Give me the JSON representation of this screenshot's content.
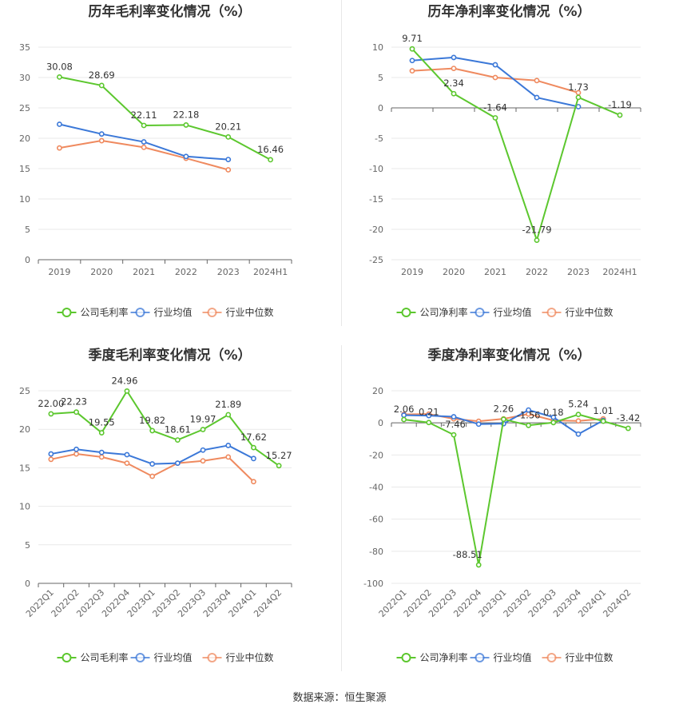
{
  "source": "数据来源：恒生聚源",
  "colors": {
    "company": "#5cc72e",
    "avg": "#3b78d8",
    "median": "#ef8a5f"
  },
  "chart_data": [
    {
      "type": "line",
      "title": "历年毛利率变化情况（%）",
      "categories": [
        "2019",
        "2020",
        "2021",
        "2022",
        "2023",
        "2024H1"
      ],
      "ylim": [
        0,
        35
      ],
      "yticks": [
        0,
        5,
        10,
        15,
        20,
        25,
        30,
        35
      ],
      "grid": true,
      "legend_position": "bottom",
      "series": [
        {
          "name": "公司毛利率",
          "color": "#5cc72e",
          "values": [
            30.08,
            28.69,
            22.11,
            22.18,
            20.21,
            16.46
          ],
          "labels": [
            "30.08",
            "28.69",
            "22.11",
            "22.18",
            "20.21",
            "16.46"
          ]
        },
        {
          "name": "行业均值",
          "color": "#3b78d8",
          "values": [
            22.3,
            20.7,
            19.4,
            17.0,
            16.5,
            null
          ]
        },
        {
          "name": "行业中位数",
          "color": "#ef8a5f",
          "values": [
            18.4,
            19.6,
            18.5,
            16.7,
            14.8,
            null
          ]
        }
      ]
    },
    {
      "type": "line",
      "title": "历年净利率变化情况（%）",
      "categories": [
        "2019",
        "2020",
        "2021",
        "2022",
        "2023",
        "2024H1"
      ],
      "ylim": [
        -25,
        10
      ],
      "yticks": [
        -25,
        -20,
        -15,
        -10,
        -5,
        0,
        5,
        10
      ],
      "grid": true,
      "legend_position": "bottom",
      "series": [
        {
          "name": "公司净利率",
          "color": "#5cc72e",
          "values": [
            9.71,
            2.34,
            -1.64,
            -21.79,
            1.73,
            -1.19
          ],
          "labels": [
            "9.71",
            "2.34",
            "-1.64",
            "-21.79",
            "1.73",
            "-1.19"
          ]
        },
        {
          "name": "行业均值",
          "color": "#3b78d8",
          "values": [
            7.8,
            8.3,
            7.1,
            1.7,
            0.2,
            null
          ]
        },
        {
          "name": "行业中位数",
          "color": "#ef8a5f",
          "values": [
            6.1,
            6.5,
            5.0,
            4.5,
            2.5,
            null
          ]
        }
      ]
    },
    {
      "type": "line",
      "title": "季度毛利率变化情况（%）",
      "categories": [
        "2022Q1",
        "2022Q2",
        "2022Q3",
        "2022Q4",
        "2023Q1",
        "2023Q2",
        "2023Q3",
        "2023Q4",
        "2024Q1",
        "2024Q2"
      ],
      "ylim": [
        0,
        25
      ],
      "yticks": [
        0,
        5,
        10,
        15,
        20,
        25
      ],
      "grid": true,
      "legend_position": "bottom",
      "series": [
        {
          "name": "公司毛利率",
          "color": "#5cc72e",
          "values": [
            22.0,
            22.23,
            19.55,
            24.96,
            19.82,
            18.61,
            19.97,
            21.89,
            17.62,
            15.27
          ],
          "labels": [
            "22.00",
            "22.23",
            "19.55",
            "24.96",
            "19.82",
            "18.61",
            "19.97",
            "21.89",
            "17.62",
            "15.27"
          ]
        },
        {
          "name": "行业均值",
          "color": "#3b78d8",
          "values": [
            16.8,
            17.4,
            17.0,
            16.7,
            15.5,
            15.6,
            17.3,
            17.9,
            16.2,
            null
          ]
        },
        {
          "name": "行业中位数",
          "color": "#ef8a5f",
          "values": [
            16.1,
            16.8,
            16.4,
            15.6,
            13.9,
            15.6,
            15.9,
            16.4,
            13.2,
            null
          ]
        }
      ]
    },
    {
      "type": "line",
      "title": "季度净利率变化情况（%）",
      "categories": [
        "2022Q1",
        "2022Q2",
        "2022Q3",
        "2022Q4",
        "2023Q1",
        "2023Q2",
        "2023Q3",
        "2023Q4",
        "2024Q1",
        "2024Q2"
      ],
      "ylim": [
        -100,
        20
      ],
      "yticks": [
        -100,
        -80,
        -60,
        -40,
        -20,
        0,
        20
      ],
      "grid": true,
      "legend_position": "bottom",
      "series": [
        {
          "name": "公司净利率",
          "color": "#5cc72e",
          "values": [
            2.06,
            0.21,
            -7.46,
            -88.51,
            2.26,
            -1.56,
            0.18,
            5.24,
            1.01,
            -3.42
          ],
          "labels": [
            "2.06",
            "0.21",
            "-7.46",
            "-88.51",
            "2.26",
            "-1.56",
            "0.18",
            "5.24",
            "1.01",
            "-3.42"
          ]
        },
        {
          "name": "行业均值",
          "color": "#3b78d8",
          "values": [
            4.8,
            4.5,
            3.8,
            -0.8,
            -0.5,
            8.0,
            3.5,
            -7.0,
            1.5,
            null
          ]
        },
        {
          "name": "行业中位数",
          "color": "#ef8a5f",
          "values": [
            5.3,
            5.5,
            2.5,
            1.0,
            2.5,
            5.5,
            1.5,
            1.2,
            2.5,
            null
          ]
        }
      ]
    }
  ]
}
